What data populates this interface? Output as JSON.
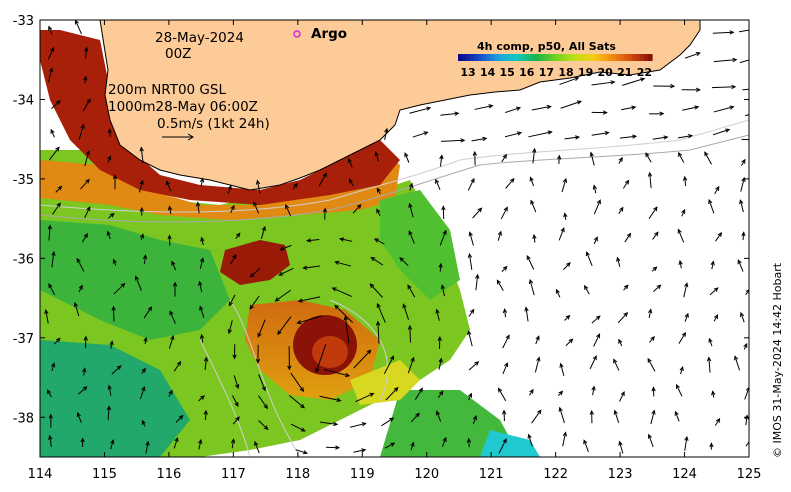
{
  "map": {
    "lon_range": [
      114,
      125
    ],
    "lat_range": [
      -38.5,
      -33
    ],
    "x_ticks": [
      "114",
      "115",
      "116",
      "117",
      "118",
      "119",
      "120",
      "121",
      "122",
      "123",
      "124",
      "125"
    ],
    "y_ticks": [
      "-33",
      "-34",
      "-35",
      "-36",
      "-37",
      "-38"
    ],
    "land_color": "#fdcb98",
    "coast_color": "#000000",
    "sst_palette": [
      "#0b0b8c",
      "#1646c8",
      "#1fa0e0",
      "#12c8c0",
      "#1ab44a",
      "#6ed21e",
      "#bede18",
      "#f8cc14",
      "#f08a10",
      "#d24a0c",
      "#8a1206"
    ]
  },
  "annotations": {
    "date": "28-May-2024",
    "time": "00Z",
    "argo_label": "Argo",
    "line1": "200m  NRT00 GSL",
    "line2": "1000m28-May 06:00Z",
    "scale_label": "0.5m/s (1kt 24h)"
  },
  "colorbar": {
    "title": "4h comp, p50, All Sats",
    "labels": [
      "13",
      "14",
      "15",
      "16",
      "17",
      "18",
      "19",
      "20",
      "21",
      "22"
    ]
  },
  "credit": "© IMOS 31-May-2024 14:42 Hobart"
}
